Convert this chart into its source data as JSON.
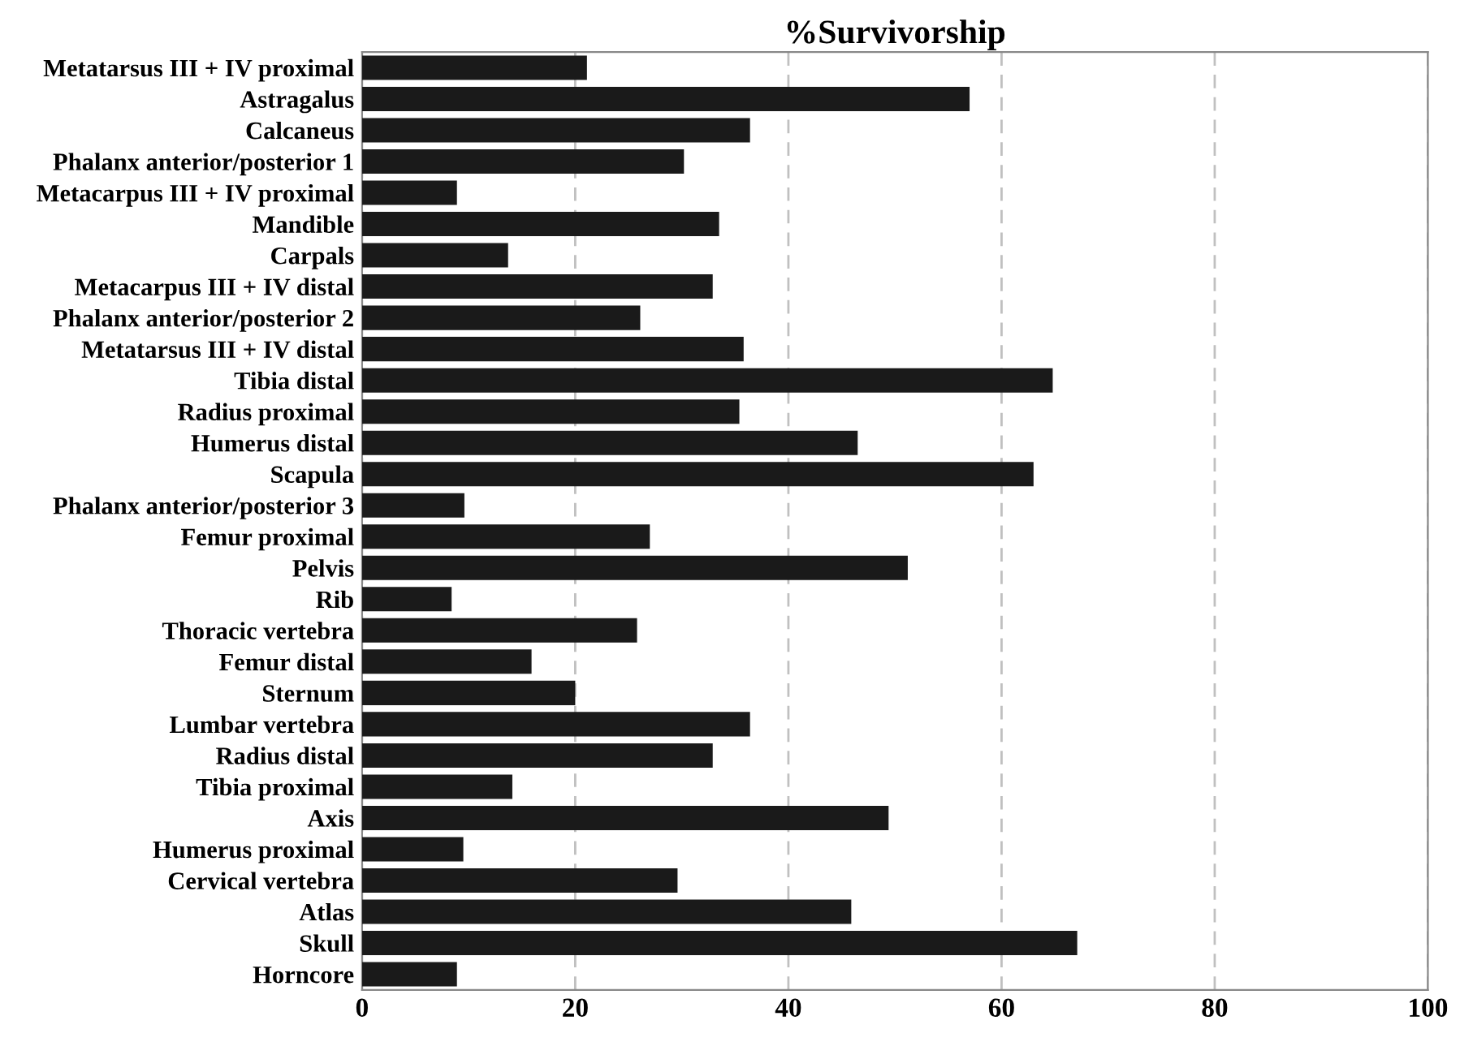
{
  "chart_data": {
    "type": "bar",
    "orientation": "horizontal",
    "title": "%Survivorship",
    "categories": [
      "Metatarsus III + IV proximal",
      "Astragalus",
      "Calcaneus",
      "Phalanx anterior/posterior 1",
      "Metacarpus III + IV proximal",
      "Mandible",
      "Carpals",
      "Metacarpus III + IV distal",
      "Phalanx anterior/posterior 2",
      "Metatarsus III + IV distal",
      "Tibia distal",
      "Radius proximal",
      "Humerus distal",
      "Scapula",
      "Phalanx anterior/posterior 3",
      "Femur proximal",
      "Pelvis",
      "Rib",
      "Thoracic vertebra",
      "Femur distal",
      "Sternum",
      "Lumbar vertebra",
      "Radius distal",
      "Tibia proximal",
      "Axis",
      "Humerus proximal",
      "Cervical vertebra",
      "Atlas",
      "Skull",
      "Horncore"
    ],
    "values": [
      21.1,
      57.0,
      36.4,
      30.2,
      8.9,
      33.5,
      13.7,
      32.9,
      26.1,
      35.8,
      64.8,
      35.4,
      46.5,
      63.0,
      9.6,
      27.0,
      51.2,
      8.4,
      25.8,
      15.9,
      20.0,
      36.4,
      32.9,
      14.1,
      49.4,
      9.5,
      29.6,
      45.9,
      67.1,
      8.9
    ],
    "color": "#1a1a1a",
    "xlim": [
      0,
      100
    ],
    "xticks": [
      0,
      20,
      40,
      60,
      80,
      100
    ],
    "grid": "x"
  }
}
